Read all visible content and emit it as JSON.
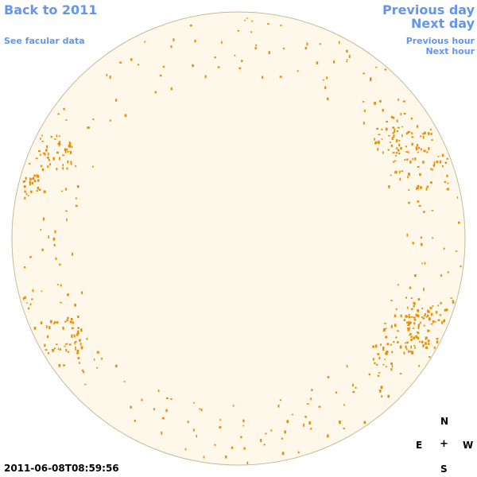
{
  "nav": {
    "back_label": "Back to 2011",
    "facular_label": "See facular data",
    "prev_day_label": "Previous day",
    "next_day_label": "Next day",
    "prev_hour_label": "Previous hour",
    "next_hour_label": "Next hour"
  },
  "compass": {
    "north": "N",
    "east": "E",
    "center": "+",
    "west": "W",
    "south": "S"
  },
  "timestamp": "2011-06-08T08:59:56",
  "colors": {
    "disk_fill": "#fdf8ea",
    "disk_edge": "#c8b89a",
    "facula": "#f08c00",
    "link": "#6495ed"
  }
}
